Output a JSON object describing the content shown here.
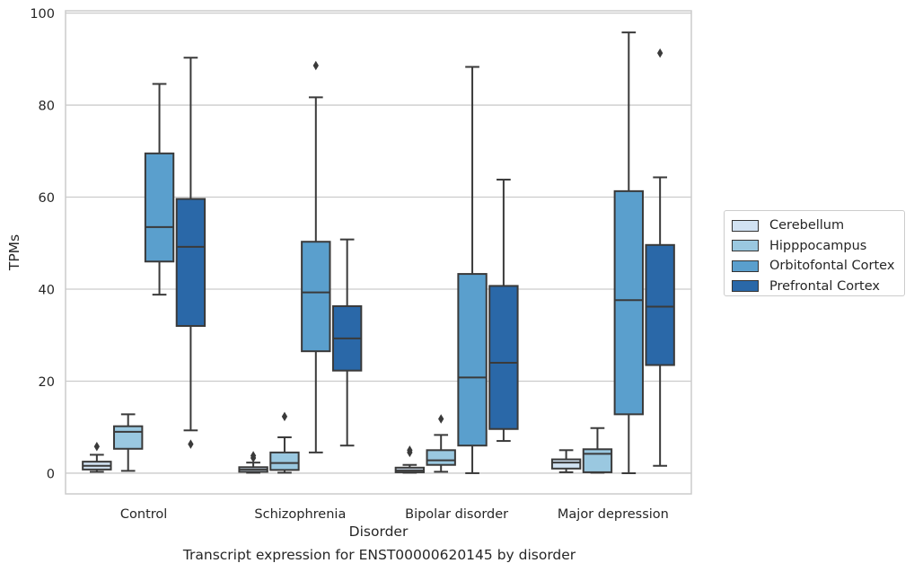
{
  "chart_data": {
    "type": "boxplot",
    "title": "",
    "xlabel": "Disorder",
    "ylabel": "TPMs",
    "caption": "Transcript expression for ENST00000620145 by disorder",
    "ylim": [
      -4.5,
      100.5
    ],
    "yticks": [
      0,
      20,
      40,
      60,
      80,
      100
    ],
    "grid": "horizontal",
    "legend_position": "right",
    "categories": [
      "Control",
      "Schizophrenia",
      "Bipolar disorder",
      "Major depression"
    ],
    "series": [
      {
        "name": "Cerebellum",
        "color": "#d1e2f2",
        "boxes": [
          {
            "whislo": 0.3,
            "q1": 0.8,
            "med": 1.6,
            "q3": 2.5,
            "whishi": 4.0,
            "fliers": [
              5.8
            ]
          },
          {
            "whislo": 0.1,
            "q1": 0.3,
            "med": 0.8,
            "q3": 1.3,
            "whishi": 2.3,
            "fliers": [
              3.3,
              3.8
            ]
          },
          {
            "whislo": 0.1,
            "q1": 0.2,
            "med": 0.6,
            "q3": 1.2,
            "whishi": 1.8,
            "fliers": [
              4.5,
              5.0
            ]
          },
          {
            "whislo": 0.2,
            "q1": 1.0,
            "med": 2.3,
            "q3": 3.0,
            "whishi": 5.0,
            "fliers": []
          }
        ]
      },
      {
        "name": "Hipppocampus",
        "color": "#9ac8e0",
        "boxes": [
          {
            "whislo": 0.5,
            "q1": 5.3,
            "med": 9.0,
            "q3": 10.2,
            "whishi": 12.8,
            "fliers": []
          },
          {
            "whislo": 0.1,
            "q1": 0.7,
            "med": 2.2,
            "q3": 4.5,
            "whishi": 7.8,
            "fliers": [
              12.3
            ]
          },
          {
            "whislo": 0.3,
            "q1": 1.8,
            "med": 2.8,
            "q3": 5.0,
            "whishi": 8.3,
            "fliers": [
              11.8
            ]
          },
          {
            "whislo": 0.1,
            "q1": 0.2,
            "med": 4.2,
            "q3": 5.2,
            "whishi": 9.8,
            "fliers": []
          }
        ]
      },
      {
        "name": "Orbitofontal Cortex",
        "color": "#5a9fcd",
        "boxes": [
          {
            "whislo": 38.8,
            "q1": 46.0,
            "med": 53.5,
            "q3": 69.5,
            "whishi": 84.6,
            "fliers": []
          },
          {
            "whislo": 4.5,
            "q1": 26.5,
            "med": 39.3,
            "q3": 50.3,
            "whishi": 81.7,
            "fliers": [
              88.6
            ]
          },
          {
            "whislo": 0.0,
            "q1": 6.0,
            "med": 20.8,
            "q3": 43.3,
            "whishi": 88.3,
            "fliers": []
          },
          {
            "whislo": 0.0,
            "q1": 12.8,
            "med": 37.6,
            "q3": 61.3,
            "whishi": 95.8,
            "fliers": []
          }
        ]
      },
      {
        "name": "Prefrontal Cortex",
        "color": "#2a68a8",
        "boxes": [
          {
            "whislo": 9.3,
            "q1": 32.0,
            "med": 49.2,
            "q3": 59.6,
            "whishi": 90.3,
            "fliers": [
              6.3
            ]
          },
          {
            "whislo": 6.0,
            "q1": 22.3,
            "med": 29.3,
            "q3": 36.3,
            "whishi": 50.8,
            "fliers": []
          },
          {
            "whislo": 7.0,
            "q1": 9.6,
            "med": 24.0,
            "q3": 40.7,
            "whishi": 63.8,
            "fliers": []
          },
          {
            "whislo": 1.6,
            "q1": 23.5,
            "med": 36.2,
            "q3": 49.6,
            "whishi": 64.3,
            "fliers": [
              91.3
            ]
          }
        ]
      }
    ]
  }
}
